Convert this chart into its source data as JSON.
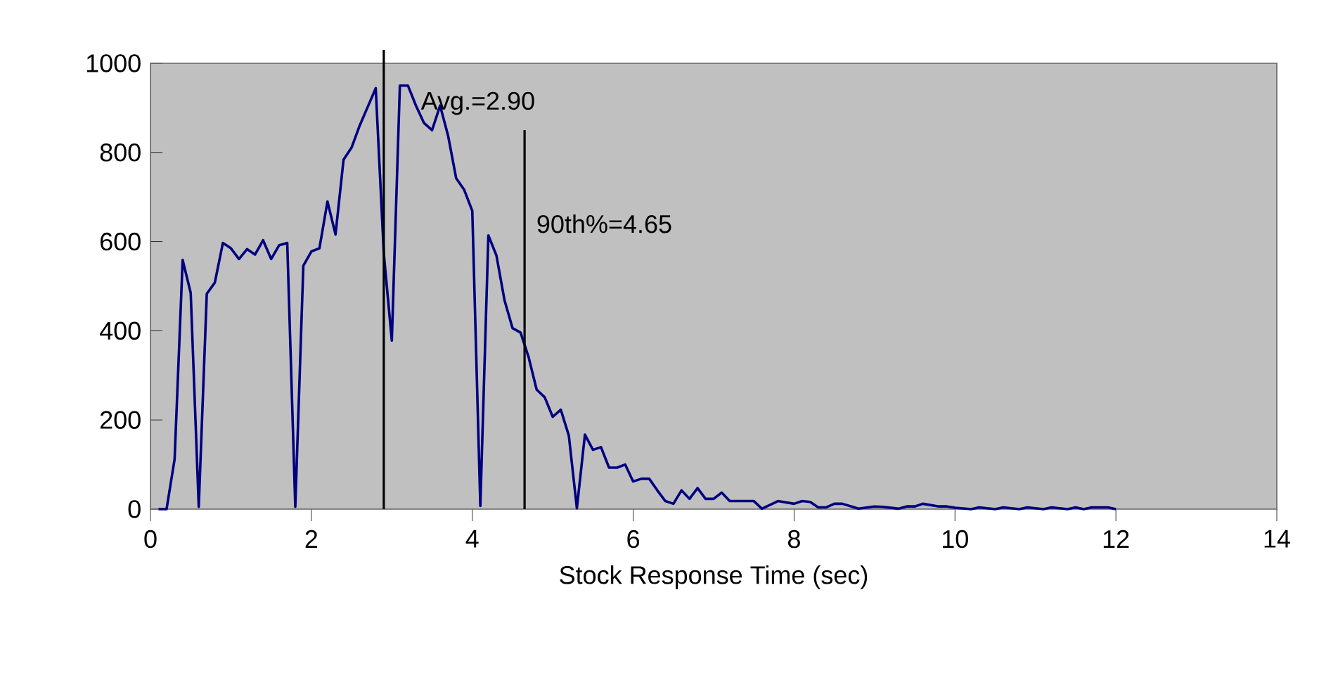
{
  "chart_data": {
    "type": "line",
    "xlabel": "Stock Response Time (sec)",
    "x": [
      0.1,
      0.2,
      0.3,
      0.4,
      0.5,
      0.6,
      0.7,
      0.8,
      0.9,
      1.0,
      1.1,
      1.2,
      1.3,
      1.4,
      1.5,
      1.6,
      1.7,
      1.8,
      1.9,
      2.0,
      2.1,
      2.2,
      2.3,
      2.4,
      2.5,
      2.6,
      2.7,
      2.8,
      2.9,
      3.0,
      3.1,
      3.2,
      3.3,
      3.4,
      3.5,
      3.6,
      3.7,
      3.8,
      3.9,
      4.0,
      4.1,
      4.2,
      4.3,
      4.4,
      4.5,
      4.6,
      4.7,
      4.8,
      4.9,
      5.0,
      5.1,
      5.2,
      5.3,
      5.4,
      5.5,
      5.6,
      5.7,
      5.8,
      5.9,
      6.0,
      6.1,
      6.2,
      6.3,
      6.4,
      6.5,
      6.6,
      6.7,
      6.8,
      6.9,
      7.0,
      7.1,
      7.2,
      7.5,
      7.6,
      7.8,
      8.0,
      8.1,
      8.2,
      8.3,
      8.4,
      8.5,
      8.6,
      8.8,
      9.0,
      9.1,
      9.3,
      9.4,
      9.5,
      9.6,
      9.8,
      9.9,
      10.0,
      10.2,
      10.3,
      10.5,
      10.6,
      10.8,
      10.9,
      11.1,
      11.2,
      11.4,
      11.5,
      11.6,
      11.7,
      11.9,
      12.0
    ],
    "series": [
      {
        "color": "#000080",
        "values": [
          0,
          0,
          112,
          559,
          485,
          5,
          483,
          508,
          597,
          585,
          561,
          583,
          571,
          603,
          561,
          592,
          597,
          5,
          546,
          578,
          585,
          690,
          616,
          784,
          811,
          860,
          902,
          944,
          574,
          378,
          950,
          950,
          905,
          866,
          850,
          905,
          837,
          742,
          716,
          669,
          7,
          614,
          569,
          469,
          406,
          396,
          341,
          268,
          251,
          207,
          223,
          165,
          2,
          167,
          133,
          139,
          93,
          93,
          100,
          62,
          68,
          68,
          42,
          18,
          12,
          42,
          23,
          47,
          23,
          23,
          37,
          18,
          18,
          1,
          18,
          12,
          18,
          16,
          4,
          4,
          12,
          12,
          1,
          6,
          5,
          1,
          6,
          6,
          12,
          6,
          6,
          3,
          0,
          4,
          0,
          4,
          0,
          4,
          0,
          4,
          0,
          4,
          0,
          4,
          4,
          0
        ]
      }
    ],
    "xlim": [
      0,
      14
    ],
    "xticks": [
      0,
      2,
      4,
      6,
      8,
      10,
      12,
      14
    ],
    "ylim": [
      0,
      1000
    ],
    "yticks": [
      0,
      200,
      400,
      600,
      800,
      1000
    ],
    "ref_lines": [
      {
        "axis": "x",
        "value": 2.9,
        "label": "Avg.=2.90",
        "color": "#000000"
      },
      {
        "axis": "x",
        "value": 4.65,
        "label": "90th%=4.65",
        "color": "#000000"
      }
    ],
    "grid": false,
    "legend": false,
    "marker": "none",
    "line_style": "solid"
  }
}
